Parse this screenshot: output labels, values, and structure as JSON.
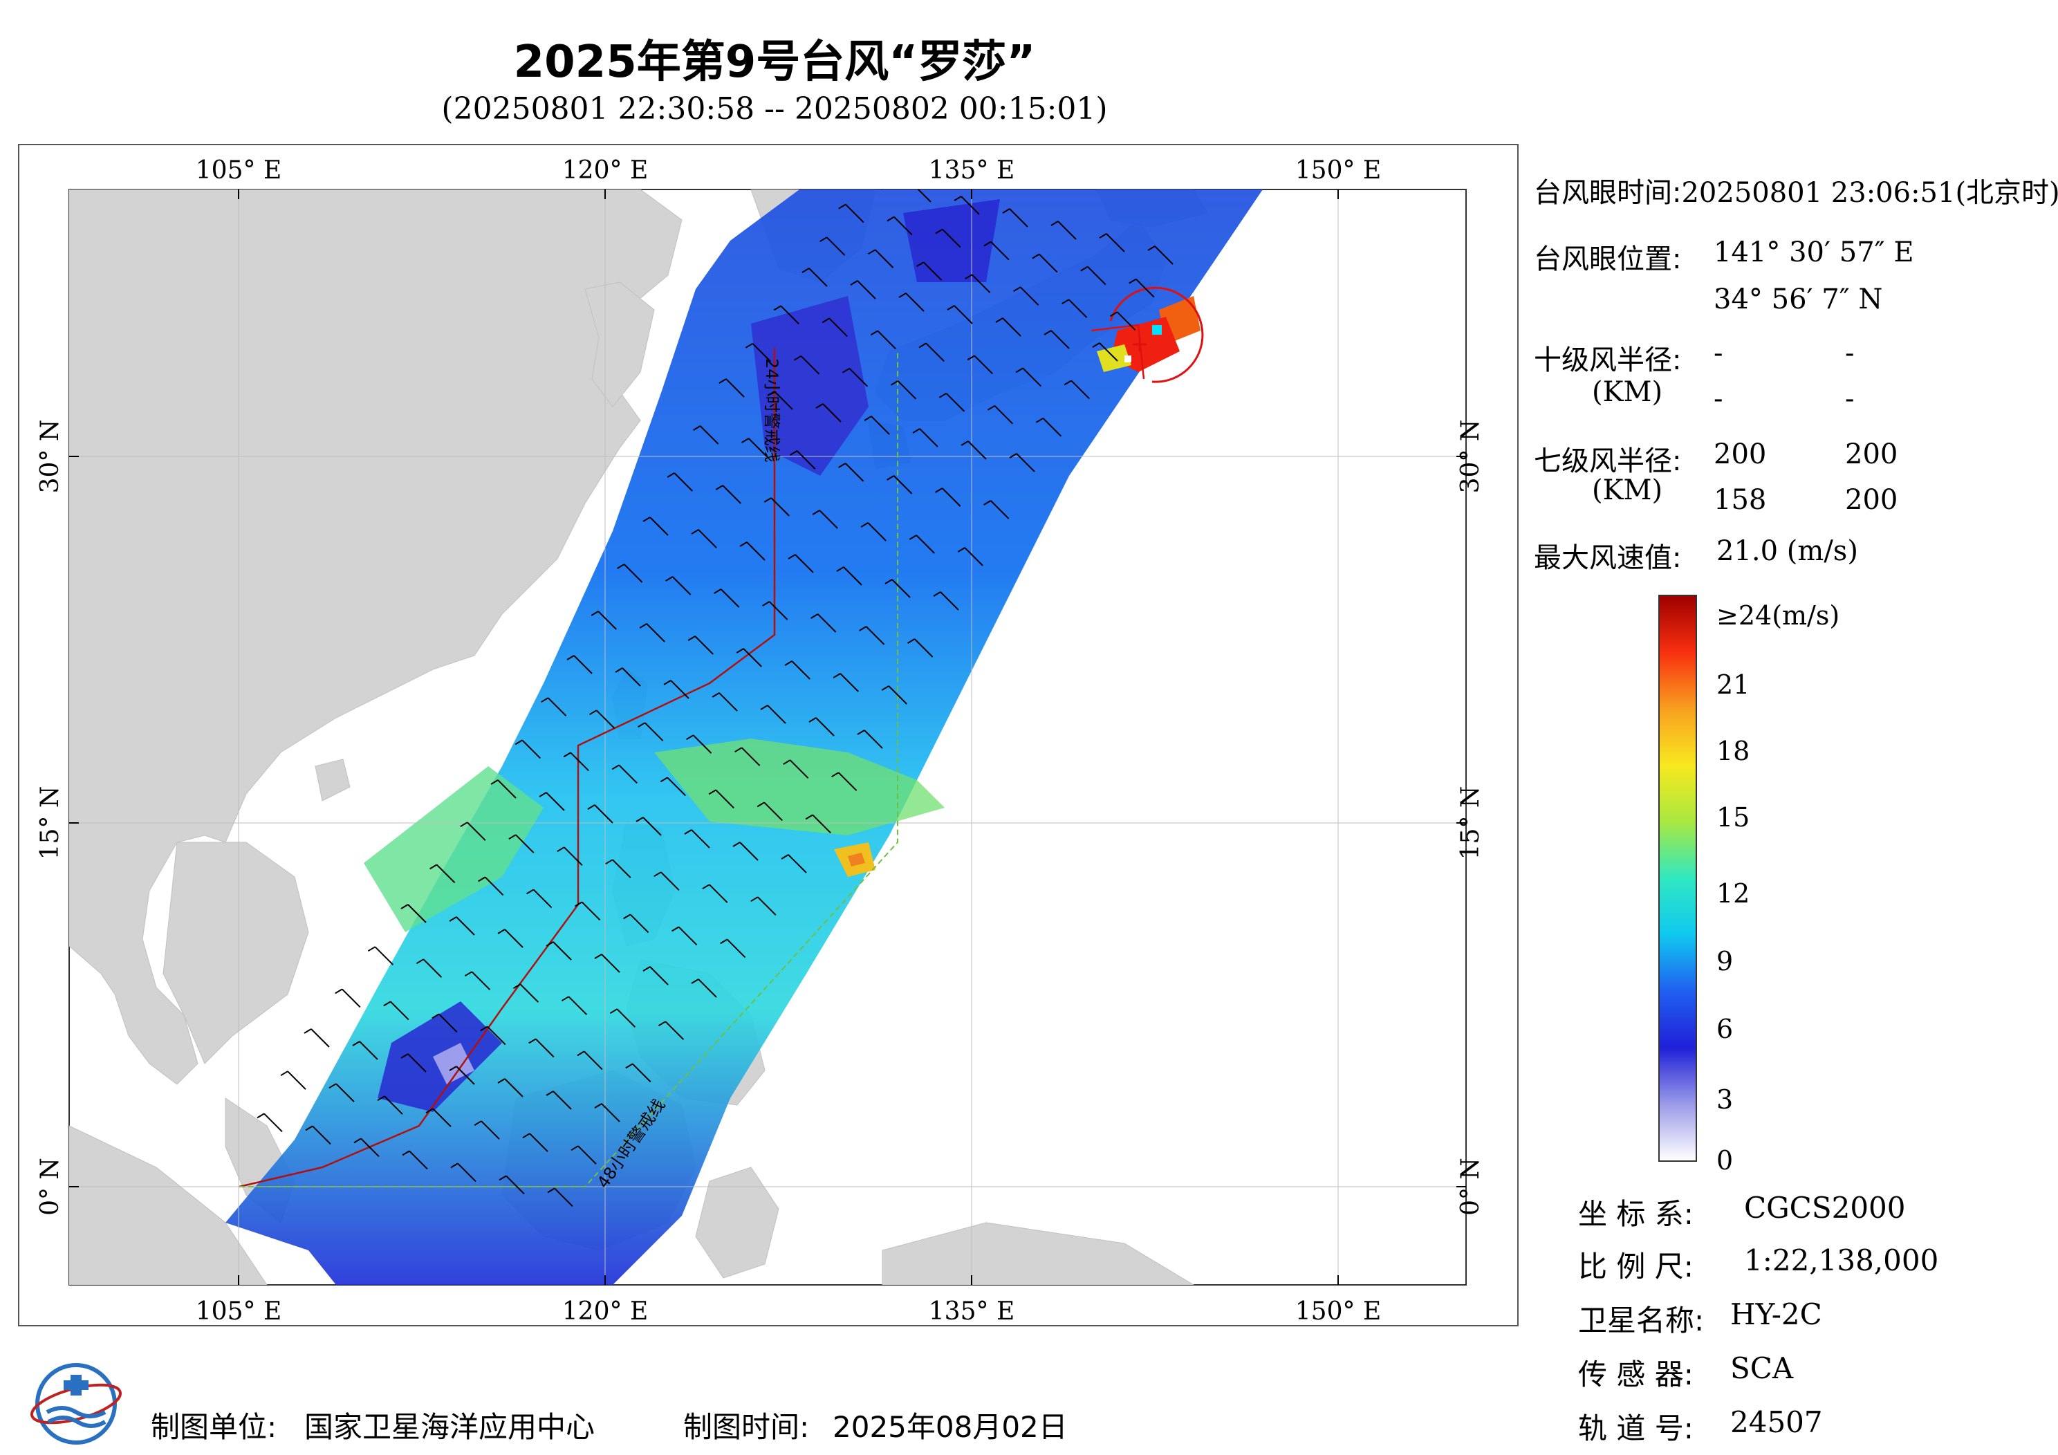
{
  "title": "2025年第9号台风“罗莎”",
  "subtitle": "(20250801 22:30:58 -- 20250802 00:15:01)",
  "map": {
    "lon_ticks": [
      "105° E",
      "120° E",
      "135° E",
      "150° E"
    ],
    "lat_ticks": [
      "30° N",
      "15° N",
      "0° N"
    ],
    "line_24h_label": "24小时警戒线",
    "line_48h_label": "48小时警戒线",
    "land_color": "#d3d3d3",
    "sea_color": "#ffffff"
  },
  "info": {
    "eye_time_label": "台风眼时间:",
    "eye_time_value": "20250801 23:06:51(北京时)",
    "eye_pos_label": "台风眼位置:",
    "eye_lon": "141° 30′ 57″ E",
    "eye_lat": "34° 56′ 7″ N",
    "r10_label": "十级风半径:",
    "r10_unit": "(KM)",
    "r10_values": [
      "-",
      "-",
      "-",
      "-"
    ],
    "r7_label": "七级风半径:",
    "r7_unit": "(KM)",
    "r7_values": [
      "200",
      "200",
      "158",
      "200"
    ],
    "max_wind_label": "最大风速值:",
    "max_wind_value": "21.0  (m/s)"
  },
  "colorbar": {
    "labels": [
      "≥24(m/s)",
      "21",
      "18",
      "15",
      "12",
      "9",
      "6",
      "3",
      "0"
    ],
    "colors": [
      "#ffffff",
      "#9a9ae8",
      "#2020d8",
      "#2060f0",
      "#10c8f0",
      "#30e8c0",
      "#a8e840",
      "#f8e820",
      "#f8a020",
      "#f83010",
      "#a00000"
    ]
  },
  "meta": {
    "crs_label": "坐 标 系:",
    "crs_value": "CGCS2000",
    "scale_label": "比 例 尺:",
    "scale_value": "1:22,138,000",
    "satellite_label": "卫星名称:",
    "satellite_value": "HY-2C",
    "sensor_label": "传 感 器:",
    "sensor_value": "SCA",
    "orbit_label": "轨 道 号:",
    "orbit_value": "24507"
  },
  "footer": {
    "maker_label": "制图单位:",
    "maker_value": "国家卫星海洋应用中心",
    "date_label": "制图时间:",
    "date_value": "2025年08月02日"
  }
}
